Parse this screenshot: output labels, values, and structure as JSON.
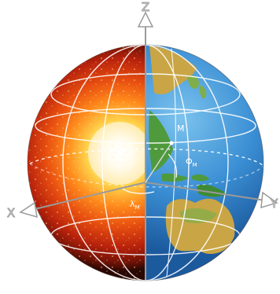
{
  "diagram": {
    "axes": {
      "z": "Z",
      "x": "X",
      "y": "Y"
    },
    "points": {
      "m": "M",
      "phi": "Φ",
      "phi_sub": "M",
      "lambda": "λ",
      "lambda_sub": "M"
    },
    "colors": {
      "ocean": "#2f7fc8",
      "land_green": "#4f9a3c",
      "land_tan": "#c9a545",
      "core_hot": "#fff8d8",
      "core_orange": "#ff8a1c",
      "mantle_red": "#b8220c",
      "crust_dark": "#2a0804",
      "axis_line": "#9a9a9a",
      "grid_line": "#ffffff"
    },
    "icons": {
      "z_arrow": "arrow-up-icon",
      "x_arrow": "arrow-left-icon",
      "y_arrow": "arrow-right-icon"
    }
  }
}
